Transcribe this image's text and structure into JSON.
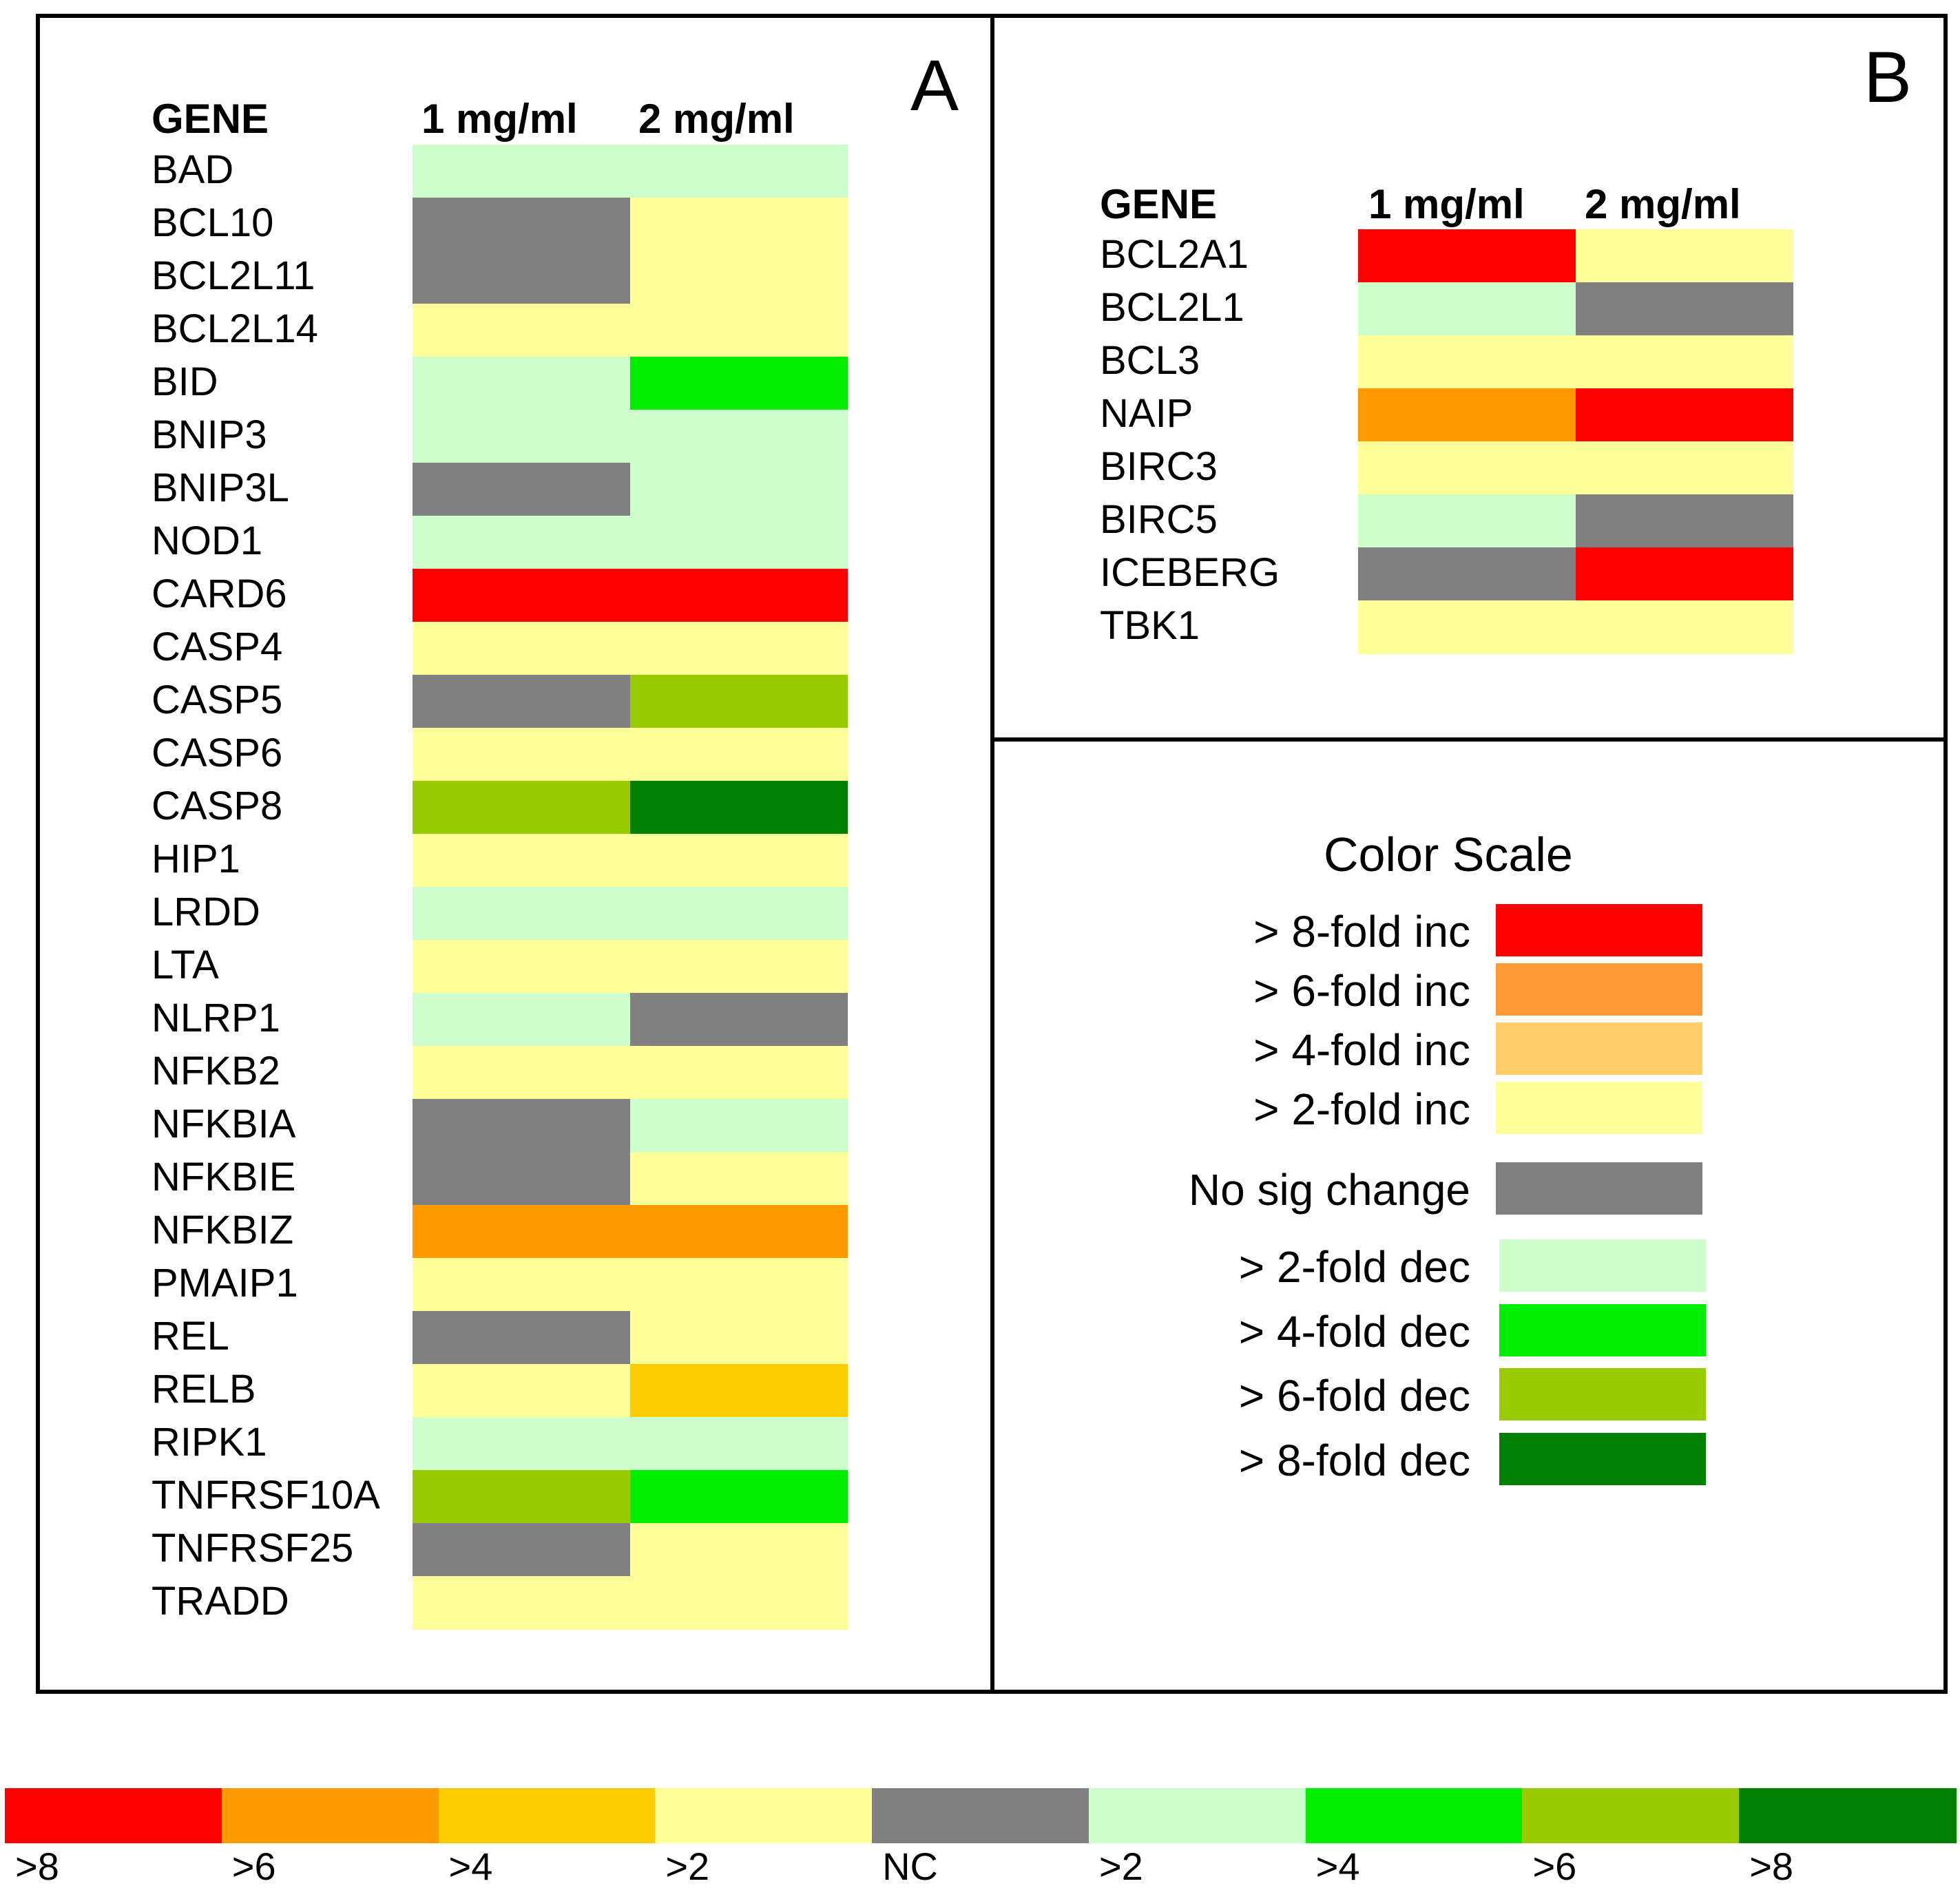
{
  "chart_data": [
    {
      "type": "heatmap",
      "panel": "A",
      "title": "",
      "xlabel": "",
      "ylabel": "",
      "header": {
        "gene": "GENE",
        "columns": [
          "1 mg/ml",
          "2 mg/ml"
        ]
      },
      "rows": [
        {
          "gene": "BAD",
          "values": [
            ">2 dec",
            ">2 dec"
          ]
        },
        {
          "gene": "BCL10",
          "values": [
            "NC",
            ">2 inc"
          ]
        },
        {
          "gene": "BCL2L11",
          "values": [
            "NC",
            ">2 inc"
          ]
        },
        {
          "gene": "BCL2L14",
          "values": [
            ">2 inc",
            ">2 inc"
          ]
        },
        {
          "gene": "BID",
          "values": [
            ">2 dec",
            ">4 dec"
          ]
        },
        {
          "gene": "BNIP3",
          "values": [
            ">2 dec",
            ">2 dec"
          ]
        },
        {
          "gene": "BNIP3L",
          "values": [
            "NC",
            ">2 dec"
          ]
        },
        {
          "gene": "NOD1",
          "values": [
            ">2 dec",
            ">2 dec"
          ]
        },
        {
          "gene": "CARD6",
          "values": [
            ">8 inc",
            ">8 inc"
          ]
        },
        {
          "gene": "CASP4",
          "values": [
            ">2 inc",
            ">2 inc"
          ]
        },
        {
          "gene": "CASP5",
          "values": [
            "NC",
            ">6 dec"
          ]
        },
        {
          "gene": "CASP6",
          "values": [
            ">2 inc",
            ">2 inc"
          ]
        },
        {
          "gene": "CASP8",
          "values": [
            ">6 dec",
            ">8 dec"
          ]
        },
        {
          "gene": "HIP1",
          "values": [
            ">2 inc",
            ">2 inc"
          ]
        },
        {
          "gene": "LRDD",
          "values": [
            ">2 dec",
            ">2 dec"
          ]
        },
        {
          "gene": "LTA",
          "values": [
            ">2 inc",
            ">2 inc"
          ]
        },
        {
          "gene": "NLRP1",
          "values": [
            ">2 dec",
            "NC"
          ]
        },
        {
          "gene": "NFKB2",
          "values": [
            ">2 inc",
            ">2 inc"
          ]
        },
        {
          "gene": "NFKBIA",
          "values": [
            "NC",
            ">2 dec"
          ]
        },
        {
          "gene": "NFKBIE",
          "values": [
            "NC",
            ">2 inc"
          ]
        },
        {
          "gene": "NFKBIZ",
          "values": [
            ">6 inc",
            ">6 inc"
          ]
        },
        {
          "gene": "PMAIP1",
          "values": [
            ">2 inc",
            ">2 inc"
          ]
        },
        {
          "gene": "REL",
          "values": [
            "NC",
            ">2 inc"
          ]
        },
        {
          "gene": "RELB",
          "values": [
            ">2 inc",
            ">4 inc"
          ]
        },
        {
          "gene": "RIPK1",
          "values": [
            ">2 dec",
            ">2 dec"
          ]
        },
        {
          "gene": "TNFRSF10A",
          "values": [
            ">6 dec",
            ">4 dec"
          ]
        },
        {
          "gene": "TNFRSF25",
          "values": [
            "NC",
            ">2 inc"
          ]
        },
        {
          "gene": "TRADD",
          "values": [
            ">2 inc",
            ">2 inc"
          ]
        }
      ]
    },
    {
      "type": "heatmap",
      "panel": "B",
      "title": "",
      "xlabel": "",
      "ylabel": "",
      "header": {
        "gene": "GENE",
        "columns": [
          "1 mg/ml",
          "2 mg/ml"
        ]
      },
      "rows": [
        {
          "gene": "BCL2A1",
          "values": [
            ">8 inc",
            ">2 inc"
          ]
        },
        {
          "gene": "BCL2L1",
          "values": [
            ">2 dec",
            "NC"
          ]
        },
        {
          "gene": "BCL3",
          "values": [
            ">2 inc",
            ">2 inc"
          ]
        },
        {
          "gene": "NAIP",
          "values": [
            ">6 inc",
            ">8 inc"
          ]
        },
        {
          "gene": "BIRC3",
          "values": [
            ">2 inc",
            ">2 inc"
          ]
        },
        {
          "gene": "BIRC5",
          "values": [
            ">2 dec",
            "NC"
          ]
        },
        {
          "gene": "ICEBERG",
          "values": [
            "NC",
            ">8 inc"
          ]
        },
        {
          "gene": "TBK1",
          "values": [
            ">2 inc",
            ">2 inc"
          ]
        }
      ]
    }
  ],
  "color_key": {
    ">8 inc": "#ff0000",
    ">6 inc": "#ff9900",
    ">4 inc": "#ffcc00",
    ">2 inc": "#ffff99",
    "NC": "#808080",
    ">2 dec": "#ccffcc",
    ">4 dec": "#00ee00",
    ">6 dec": "#99cc00",
    ">8 dec": "#008000"
  },
  "legend": {
    "title": "Color Scale",
    "items": [
      {
        "label": "> 8-fold inc",
        "key": ">8 inc",
        "color": "#ff0000"
      },
      {
        "label": "> 6-fold inc",
        "key": ">6 inc",
        "color": "#ff9933"
      },
      {
        "label": "> 4-fold inc",
        "key": ">4 inc",
        "color": "#ffcc66"
      },
      {
        "label": "> 2-fold inc",
        "key": ">2 inc",
        "color": "#ffff99"
      },
      {
        "label": "No sig change",
        "key": "NC",
        "color": "#808080"
      },
      {
        "label": "> 2-fold dec",
        "key": ">2 dec",
        "color": "#ccffcc"
      },
      {
        "label": "> 4-fold dec",
        "key": ">4 dec",
        "color": "#00ee00"
      },
      {
        "label": "> 6-fold dec",
        "key": ">6 dec",
        "color": "#99cc00"
      },
      {
        "label": "> 8-fold dec",
        "key": ">8 dec",
        "color": "#008000"
      }
    ]
  },
  "bottom_bar": [
    {
      "label": ">8",
      "color": "#ff0000"
    },
    {
      "label": ">6",
      "color": "#ff9900"
    },
    {
      "label": ">4",
      "color": "#ffcc00"
    },
    {
      "label": ">2",
      "color": "#ffff99"
    },
    {
      "label": "NC",
      "color": "#808080"
    },
    {
      "label": ">2",
      "color": "#ccffcc"
    },
    {
      "label": ">4",
      "color": "#00ee00"
    },
    {
      "label": ">6",
      "color": "#99cc00"
    },
    {
      "label": ">8",
      "color": "#008000"
    }
  ]
}
